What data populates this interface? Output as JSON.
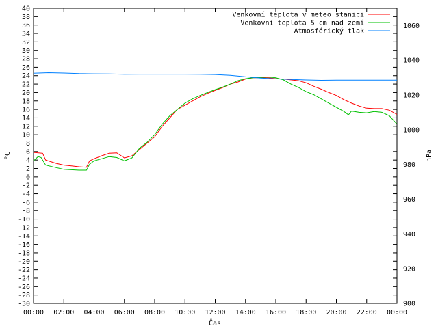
{
  "chart_data": {
    "type": "line",
    "xlabel": "Čas",
    "ylabel": "°C",
    "y2label": "hPa",
    "x_ticks": [
      "00:00",
      "02:00",
      "04:00",
      "06:00",
      "08:00",
      "10:00",
      "12:00",
      "14:00",
      "16:00",
      "18:00",
      "20:00",
      "22:00",
      "00:00"
    ],
    "xlim_hours": [
      0,
      24
    ],
    "ylim": [
      -30,
      40
    ],
    "y_ticks": [
      40,
      38,
      36,
      34,
      32,
      30,
      28,
      26,
      24,
      22,
      20,
      18,
      16,
      14,
      12,
      10,
      8,
      6,
      4,
      2,
      0,
      -2,
      -4,
      -6,
      -8,
      -10,
      -12,
      -14,
      -16,
      -18,
      -20,
      -22,
      -24,
      -26,
      -28,
      -30
    ],
    "y2lim": [
      900,
      1070
    ],
    "y2_ticks": [
      1060,
      1040,
      1020,
      1000,
      980,
      960,
      940,
      920,
      900
    ],
    "grid": false,
    "legend_position": "top-right",
    "series": [
      {
        "name": "Venkovní teplota v meteo stanici",
        "color": "#ff0000",
        "axis": "left",
        "x": [
          0,
          0.6,
          0.8,
          1.5,
          2,
          2.5,
          3,
          3.5,
          3.7,
          4,
          4.5,
          5,
          5.5,
          6,
          6.5,
          7,
          7.5,
          8,
          8.5,
          9,
          9.5,
          10,
          10.5,
          11,
          11.5,
          12,
          12.5,
          13,
          13.5,
          14,
          14.5,
          15,
          15.5,
          16,
          16.5,
          17,
          17.5,
          18,
          18.5,
          19,
          19.5,
          20,
          20.5,
          21,
          21.5,
          22,
          22.5,
          23,
          23.5,
          24
        ],
        "values": [
          5.8,
          5.6,
          4,
          3.2,
          2.8,
          2.6,
          2.4,
          2.3,
          3.8,
          4.3,
          5,
          5.6,
          5.7,
          4.5,
          5,
          6.5,
          8,
          9.5,
          12,
          14,
          16,
          17,
          18,
          19,
          19.8,
          20.5,
          21.2,
          22,
          22.5,
          23.2,
          23.5,
          23.5,
          23.5,
          23.3,
          23.2,
          23,
          22.8,
          22.3,
          21.5,
          20.8,
          20,
          19.3,
          18.3,
          17.5,
          16.8,
          16.3,
          16.2,
          16.2,
          15.8,
          14.8
        ]
      },
      {
        "name": "Venkovní teplota 5 cm nad zemí",
        "color": "#00c000",
        "axis": "left",
        "x": [
          0,
          0.3,
          0.5,
          0.8,
          1.5,
          2,
          2.5,
          3,
          3.5,
          3.7,
          4,
          4.5,
          5,
          5.5,
          6,
          6.5,
          7,
          7.5,
          8,
          8.5,
          9,
          9.5,
          10,
          10.5,
          11,
          11.5,
          12,
          12.5,
          13,
          13.5,
          14,
          14.5,
          15,
          15.5,
          16,
          16.5,
          17,
          17.5,
          18,
          18.5,
          19,
          19.5,
          20,
          20.5,
          20.8,
          21,
          21.5,
          22,
          22.5,
          23,
          23.5,
          24
        ],
        "values": [
          3.8,
          4.8,
          4.6,
          2.8,
          2.2,
          1.8,
          1.7,
          1.6,
          1.6,
          3,
          3.8,
          4.3,
          4.8,
          4.6,
          3.8,
          4.5,
          6.8,
          8.2,
          10,
          12.5,
          14.5,
          16,
          17.5,
          18.5,
          19.3,
          20,
          20.7,
          21.3,
          22,
          22.8,
          23.3,
          23.5,
          23.6,
          23.7,
          23.5,
          23,
          22,
          21.2,
          20.2,
          19.5,
          18.5,
          17.5,
          16.5,
          15.5,
          14.7,
          15.6,
          15.3,
          15.2,
          15.5,
          15.3,
          14.5,
          12.5
        ]
      },
      {
        "name": "Atmosférický tlak",
        "color": "#0080ff",
        "axis": "right",
        "x": [
          0,
          1,
          2,
          3,
          4,
          5,
          6,
          7,
          8,
          9,
          10,
          11,
          12,
          13,
          14,
          15,
          16,
          17,
          18,
          19,
          20,
          21,
          22,
          23,
          24
        ],
        "values": [
          1032.5,
          1032.8,
          1032.6,
          1032.3,
          1032.2,
          1032.1,
          1031.9,
          1032,
          1032,
          1032,
          1032,
          1031.9,
          1031.8,
          1031.3,
          1030.5,
          1029.8,
          1029.3,
          1029,
          1028.7,
          1028.5,
          1028.6,
          1028.6,
          1028.6,
          1028.6,
          1028.6
        ]
      }
    ]
  }
}
